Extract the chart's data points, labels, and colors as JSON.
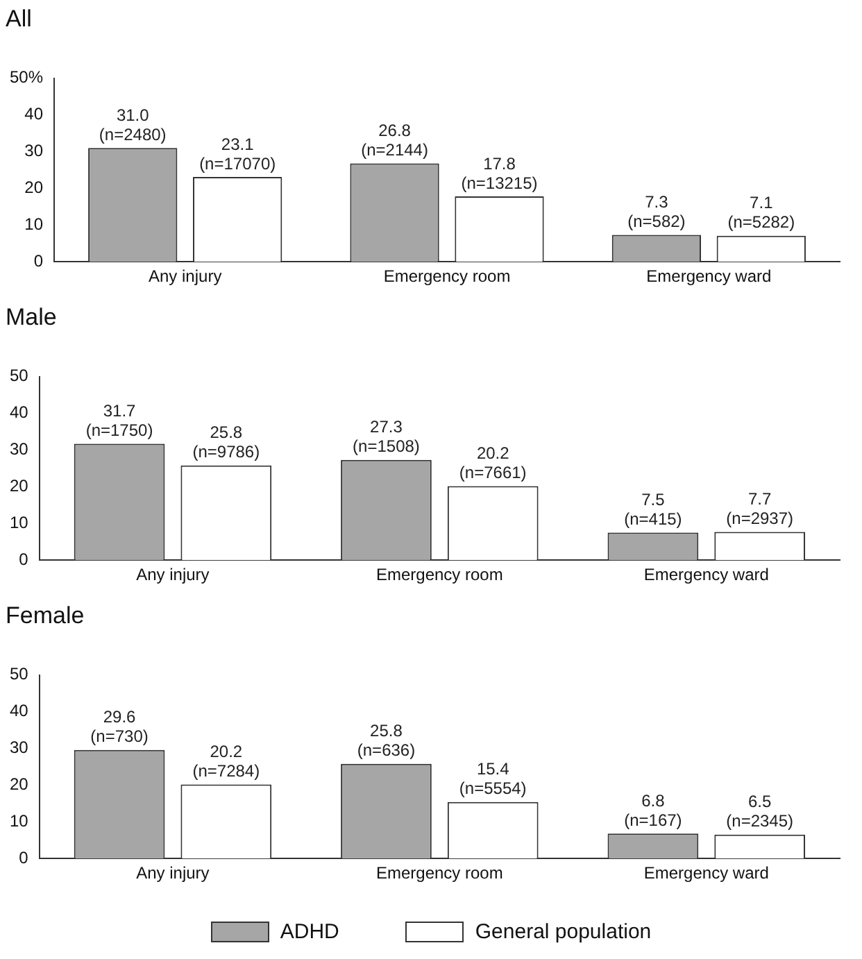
{
  "chart_data": [
    {
      "type": "bar",
      "title": "All",
      "categories": [
        "Any injury",
        "Emergency room",
        "Emergency ward"
      ],
      "ylim": [
        0,
        50
      ],
      "yticks": [
        0,
        10,
        20,
        30,
        40,
        {
          "value": 50,
          "label": "50%"
        }
      ],
      "grid": false,
      "legend": false,
      "series": [
        {
          "color": "#a6a6a6",
          "values": [
            31.0,
            26.8,
            7.3
          ],
          "value_labels": [
            "31.0\n(n=2480)",
            "26.8\n(n=2144)",
            "7.3\n(n=582)"
          ]
        },
        {
          "color": "#ffffff",
          "values": [
            23.1,
            17.8,
            7.1
          ],
          "value_labels": [
            "23.1\n(n=17070)",
            "17.8\n(n=13215)",
            "7.1\n(n=5282)"
          ]
        }
      ]
    },
    {
      "type": "bar",
      "title": "Male",
      "categories": [
        "Any injury",
        "Emergency room",
        "Emergency ward"
      ],
      "ylim": [
        0,
        50
      ],
      "yticks": [
        0,
        10,
        20,
        30,
        40,
        50
      ],
      "grid": false,
      "legend": false,
      "series": [
        {
          "color": "#a6a6a6",
          "values": [
            31.7,
            27.3,
            7.5
          ],
          "value_labels": [
            "31.7\n(n=1750)",
            "27.3\n(n=1508)",
            "7.5\n(n=415)"
          ]
        },
        {
          "color": "#ffffff",
          "values": [
            25.8,
            20.2,
            7.7
          ],
          "value_labels": [
            "25.8\n(n=9786)",
            "20.2\n(n=7661)",
            "7.7\n(n=2937)"
          ]
        }
      ]
    },
    {
      "type": "bar",
      "title": "Female",
      "categories": [
        "Any injury",
        "Emergency room",
        "Emergency ward"
      ],
      "ylim": [
        0,
        50
      ],
      "yticks": [
        0,
        10,
        20,
        30,
        40,
        50
      ],
      "grid": false,
      "legend": "bottom",
      "series": [
        {
          "name": "ADHD",
          "color": "#a6a6a6",
          "values": [
            29.6,
            25.8,
            6.8
          ],
          "value_labels": [
            "29.6\n(n=730)",
            "25.8\n(n=636)",
            "6.8\n(n=167)"
          ]
        },
        {
          "name": "General population",
          "color": "#ffffff",
          "values": [
            20.2,
            15.4,
            6.5
          ],
          "value_labels": [
            "20.2\n(n=7284)",
            "15.4\n(n=5554)",
            "6.5\n(n=2345)"
          ]
        }
      ]
    }
  ]
}
